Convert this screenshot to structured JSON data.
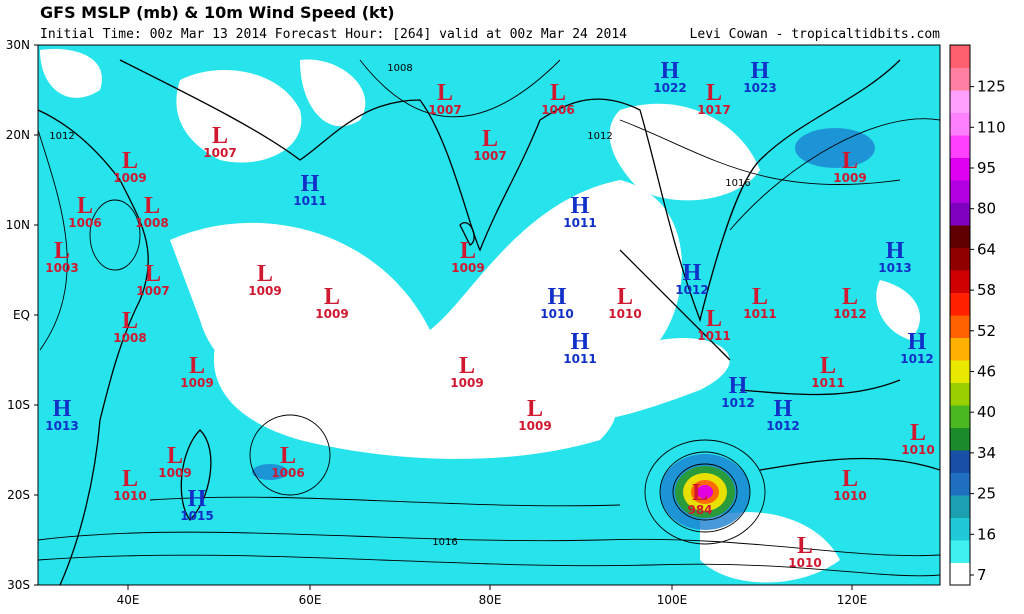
{
  "header": {
    "title": "GFS MSLP (mb) & 10m Wind Speed (kt)",
    "subtitle": "Initial Time: 00z Mar 13 2014 Forecast Hour: [264] valid at 00z Mar 24 2014",
    "credit": "Levi Cowan - tropicaltidbits.com"
  },
  "map": {
    "lat_labels": [
      "30N",
      "20N",
      "10N",
      "EQ",
      "10S",
      "20S",
      "30S"
    ],
    "lon_labels": [
      "40E",
      "60E",
      "80E",
      "100E",
      "120E"
    ],
    "isobar_labels": [
      1008,
      1012,
      1012,
      1016,
      1016
    ],
    "centers": [
      {
        "type": "L",
        "pressure": 1007
      },
      {
        "type": "L",
        "pressure": 1006
      },
      {
        "type": "H",
        "pressure": 1022
      },
      {
        "type": "L",
        "pressure": 1017
      },
      {
        "type": "H",
        "pressure": 1023
      },
      {
        "type": "L",
        "pressure": 1007
      },
      {
        "type": "L",
        "pressure": 1007
      },
      {
        "type": "L",
        "pressure": 1009
      },
      {
        "type": "L",
        "pressure": 1009
      },
      {
        "type": "H",
        "pressure": 1011
      },
      {
        "type": "L",
        "pressure": 1006
      },
      {
        "type": "L",
        "pressure": 1008
      },
      {
        "type": "H",
        "pressure": 1011
      },
      {
        "type": "L",
        "pressure": 1003
      },
      {
        "type": "L",
        "pressure": 1009
      },
      {
        "type": "H",
        "pressure": 1013
      },
      {
        "type": "L",
        "pressure": 1007
      },
      {
        "type": "L",
        "pressure": 1009
      },
      {
        "type": "H",
        "pressure": 1012
      },
      {
        "type": "L",
        "pressure": 1009
      },
      {
        "type": "H",
        "pressure": 1010
      },
      {
        "type": "L",
        "pressure": 1010
      },
      {
        "type": "L",
        "pressure": 1011
      },
      {
        "type": "L",
        "pressure": 1012
      },
      {
        "type": "L",
        "pressure": 1008
      },
      {
        "type": "L",
        "pressure": 1011
      },
      {
        "type": "H",
        "pressure": 1011
      },
      {
        "type": "H",
        "pressure": 1012
      },
      {
        "type": "L",
        "pressure": 1009
      },
      {
        "type": "L",
        "pressure": 1009
      },
      {
        "type": "L",
        "pressure": 1011
      },
      {
        "type": "H",
        "pressure": 1012
      },
      {
        "type": "H",
        "pressure": 1013
      },
      {
        "type": "L",
        "pressure": 1009
      },
      {
        "type": "H",
        "pressure": 1012
      },
      {
        "type": "L",
        "pressure": 1010
      },
      {
        "type": "L",
        "pressure": 1009
      },
      {
        "type": "L",
        "pressure": 1006
      },
      {
        "type": "L",
        "pressure": 1010
      },
      {
        "type": "L",
        "pressure": 1010
      },
      {
        "type": "H",
        "pressure": 1015
      },
      {
        "type": "L",
        "pressure": 984
      },
      {
        "type": "L",
        "pressure": 1010
      }
    ]
  },
  "colorbar": {
    "ticks": [
      7,
      16,
      25,
      34,
      40,
      46,
      52,
      58,
      64,
      80,
      95,
      110,
      125
    ]
  }
}
